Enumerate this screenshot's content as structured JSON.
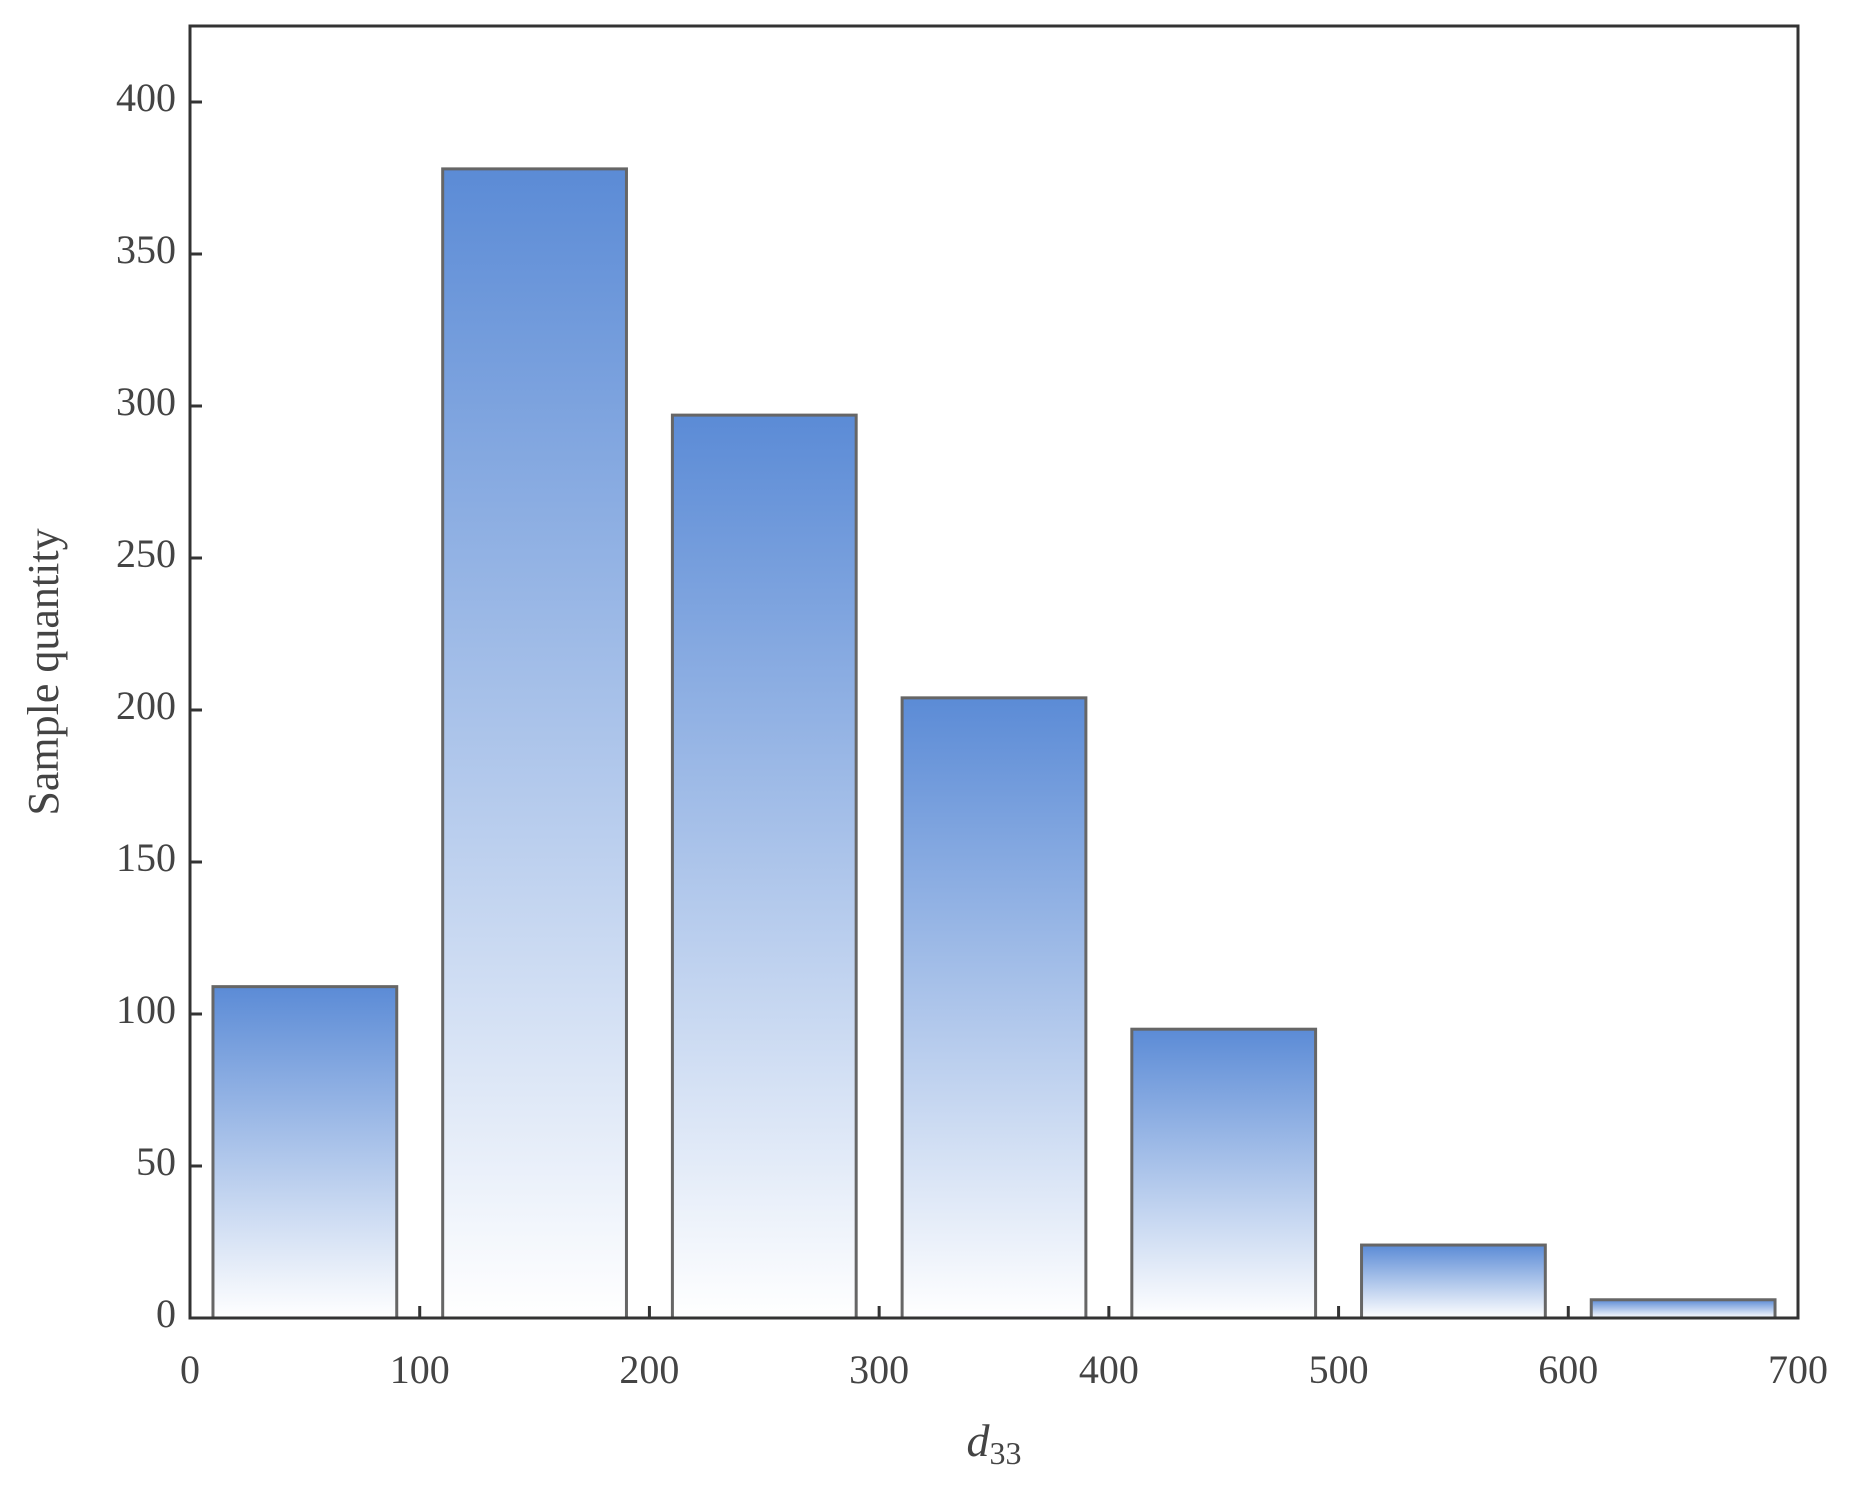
{
  "chart_data": {
    "type": "bar",
    "xlabel": {
      "text": "d",
      "subscript": "33"
    },
    "ylabel": "Sample quantity",
    "x": [
      50,
      150,
      250,
      350,
      450,
      550,
      650
    ],
    "bar_width": 80,
    "values": [
      109,
      378,
      297,
      204,
      95,
      24,
      6
    ],
    "color": "#5b8bd6",
    "xlim": [
      0,
      700
    ],
    "xticks": [
      0,
      100,
      200,
      300,
      400,
      500,
      600,
      700
    ],
    "ylim": [
      0,
      425
    ],
    "yticks": [
      0,
      50,
      100,
      150,
      200,
      250,
      300,
      350,
      400
    ]
  }
}
